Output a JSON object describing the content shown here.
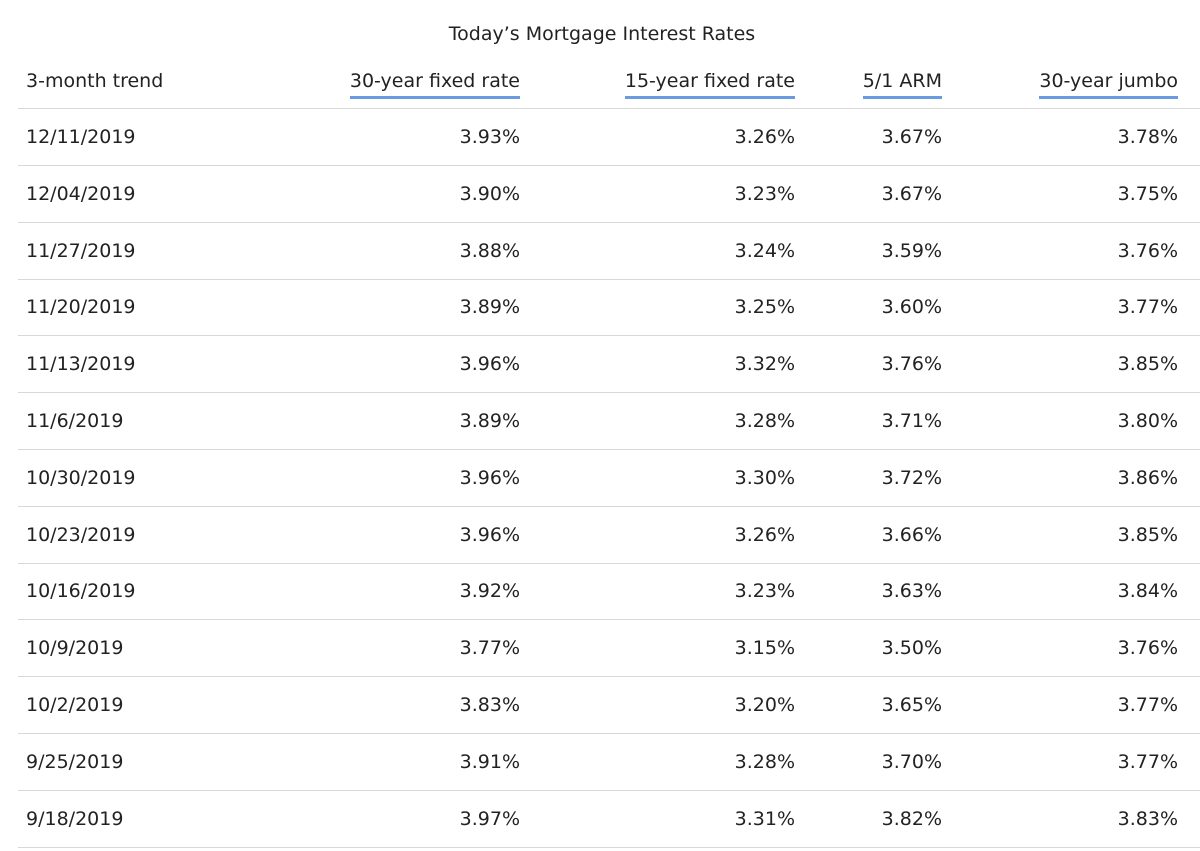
{
  "table": {
    "title": "Today’s Mortgage Interest Rates",
    "columns": [
      "3-month trend",
      "30-year fixed rate",
      "15-year fixed rate",
      "5/1 ARM",
      "30-year jumbo"
    ],
    "rows": [
      [
        "12/11/2019",
        "3.93%",
        "3.26%",
        "3.67%",
        "3.78%"
      ],
      [
        "12/04/2019",
        "3.90%",
        "3.23%",
        "3.67%",
        "3.75%"
      ],
      [
        "11/27/2019",
        "3.88%",
        "3.24%",
        "3.59%",
        "3.76%"
      ],
      [
        "11/20/2019",
        "3.89%",
        "3.25%",
        "3.60%",
        "3.77%"
      ],
      [
        "11/13/2019",
        "3.96%",
        "3.32%",
        "3.76%",
        "3.85%"
      ],
      [
        "11/6/2019",
        "3.89%",
        "3.28%",
        "3.71%",
        "3.80%"
      ],
      [
        "10/30/2019",
        "3.96%",
        "3.30%",
        "3.72%",
        "3.86%"
      ],
      [
        "10/23/2019",
        "3.96%",
        "3.26%",
        "3.66%",
        "3.85%"
      ],
      [
        "10/16/2019",
        "3.92%",
        "3.23%",
        "3.63%",
        "3.84%"
      ],
      [
        "10/9/2019",
        "3.77%",
        "3.15%",
        "3.50%",
        "3.76%"
      ],
      [
        "10/2/2019",
        "3.83%",
        "3.20%",
        "3.65%",
        "3.77%"
      ],
      [
        "9/25/2019",
        "3.91%",
        "3.28%",
        "3.70%",
        "3.77%"
      ],
      [
        "9/18/2019",
        "3.97%",
        "3.31%",
        "3.82%",
        "3.83%"
      ]
    ]
  }
}
